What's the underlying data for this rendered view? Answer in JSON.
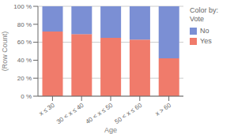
{
  "chart_data": {
    "type": "bar",
    "stacked": true,
    "categories": [
      "x ≤ 30",
      "30 < x ≤ 40",
      "40 < x ≤ 50",
      "50 < x ≤ 60",
      "x > 60"
    ],
    "series": [
      {
        "name": "Yes",
        "color": "#F07B6B",
        "values": [
          72,
          69,
          65,
          63,
          42
        ]
      },
      {
        "name": "No",
        "color": "#7B8FD4",
        "values": [
          28,
          31,
          35,
          37,
          58
        ]
      }
    ],
    "xlabel": "Age",
    "ylabel": "(Row Count)",
    "ylim": [
      0,
      100
    ],
    "yticks": [
      {
        "value": 0,
        "label": "0 %"
      },
      {
        "value": 20,
        "label": "20 %"
      },
      {
        "value": 40,
        "label": "40 %"
      },
      {
        "value": 60,
        "label": "60 %"
      },
      {
        "value": 80,
        "label": "80 %"
      },
      {
        "value": 100,
        "label": "100 %"
      }
    ],
    "grid": true,
    "legend": "right",
    "legend_title": "Color by:\nVote"
  }
}
